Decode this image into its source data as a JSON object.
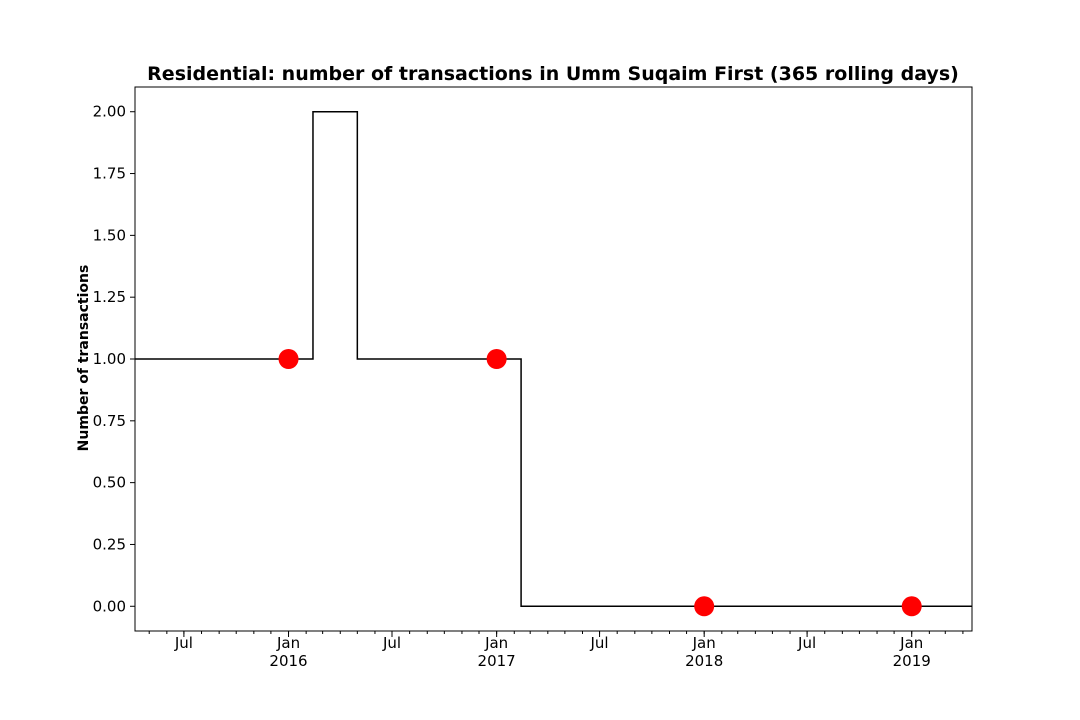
{
  "chart_data": {
    "type": "line",
    "title": "Residential: number of transactions in Umm Suqaim First (365 rolling days)",
    "xlabel": "",
    "ylabel": "Number of transactions",
    "xlim": [
      "2015-04-06",
      "2019-04-17"
    ],
    "ylim": [
      -0.1,
      2.1
    ],
    "yticks": [
      "0.00",
      "0.25",
      "0.50",
      "0.75",
      "1.00",
      "1.25",
      "1.50",
      "1.75",
      "2.00"
    ],
    "xticks": [
      {
        "date": "2015-07-01",
        "label": "Jul",
        "year": ""
      },
      {
        "date": "2016-01-01",
        "label": "Jan",
        "year": "2016"
      },
      {
        "date": "2016-07-01",
        "label": "Jul",
        "year": ""
      },
      {
        "date": "2017-01-01",
        "label": "Jan",
        "year": "2017"
      },
      {
        "date": "2017-07-01",
        "label": "Jul",
        "year": ""
      },
      {
        "date": "2018-01-01",
        "label": "Jan",
        "year": "2018"
      },
      {
        "date": "2018-07-01",
        "label": "Jul",
        "year": ""
      },
      {
        "date": "2019-01-01",
        "label": "Jan",
        "year": "2019"
      }
    ],
    "series": [
      {
        "style": "step",
        "color": "#000000",
        "points": [
          {
            "x": "2015-04-06",
            "y": 1
          },
          {
            "x": "2016-02-13",
            "y": 2
          },
          {
            "x": "2016-05-01",
            "y": 1
          },
          {
            "x": "2017-02-13",
            "y": 0
          },
          {
            "x": "2019-04-17",
            "y": 0
          }
        ]
      },
      {
        "style": "markers",
        "color": "#ff0000",
        "points": [
          {
            "x": "2016-01-01",
            "y": 1
          },
          {
            "x": "2017-01-01",
            "y": 1
          },
          {
            "x": "2018-01-01",
            "y": 0
          },
          {
            "x": "2019-01-01",
            "y": 0
          }
        ]
      }
    ],
    "grid": false,
    "legend": "none"
  }
}
